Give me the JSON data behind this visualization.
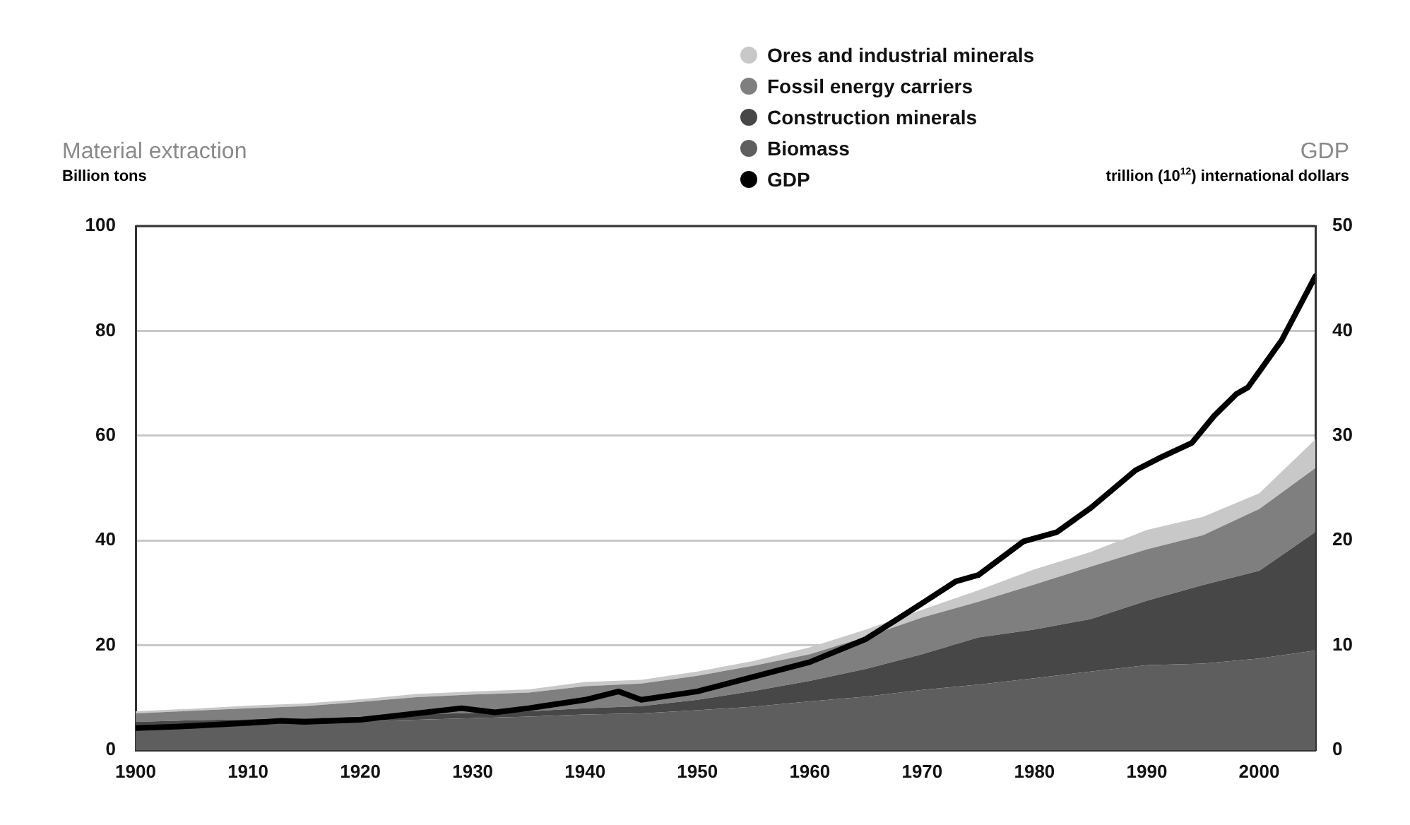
{
  "chart_data": {
    "type": "area",
    "stacked": true,
    "ylabel": "Material extraction",
    "y2label": "GDP",
    "annotations": [
      "Billion tons",
      "trillion (10$^{12}$) international dollars"
    ],
    "x": [
      1900,
      1905,
      1910,
      1915,
      1920,
      1925,
      1930,
      1935,
      1940,
      1945,
      1950,
      1955,
      1960,
      1965,
      1970,
      1975,
      1980,
      1985,
      1990,
      1995,
      2000,
      2005
    ],
    "series": [
      {
        "name": "Biomass",
        "color": "#5e5e5e",
        "values": [
          4.6,
          4.8,
          5.0,
          5.2,
          5.5,
          5.8,
          6.1,
          6.4,
          6.8,
          7.0,
          7.6,
          8.3,
          9.3,
          10.2,
          11.5,
          12.5,
          13.7,
          15.0,
          16.2,
          16.5,
          17.5,
          19.0
        ]
      },
      {
        "name": "Construction minerals",
        "color": "#474747",
        "values": [
          0.8,
          0.9,
          0.9,
          0.9,
          0.9,
          1.0,
          1.0,
          1.0,
          1.2,
          1.4,
          2.0,
          3.0,
          3.9,
          5.3,
          6.8,
          9.0,
          9.3,
          10.0,
          12.3,
          15.0,
          16.7,
          22.6
        ]
      },
      {
        "name": "Fossil energy carriers",
        "color": "#7f7f7f",
        "values": [
          1.6,
          1.8,
          2.1,
          2.3,
          2.8,
          3.3,
          3.5,
          3.6,
          4.2,
          4.3,
          4.6,
          4.8,
          5.1,
          6.1,
          7.0,
          6.8,
          8.6,
          10.0,
          9.8,
          9.5,
          11.8,
          12.2
        ]
      },
      {
        "name": "Ores and industrial minerals",
        "color": "#c8c8c8",
        "values": [
          0.4,
          0.4,
          0.5,
          0.5,
          0.5,
          0.6,
          0.6,
          0.6,
          0.8,
          0.7,
          0.8,
          0.9,
          1.3,
          1.4,
          1.5,
          2.2,
          2.9,
          2.8,
          3.7,
          3.5,
          3.0,
          5.5
        ]
      },
      {
        "name": "GDP",
        "type": "line",
        "axis": "y2",
        "color": "#000000",
        "x": [
          1900,
          1905,
          1910,
          1913,
          1915,
          1920,
          1925,
          1929,
          1932,
          1935,
          1940,
          1943,
          1945,
          1950,
          1955,
          1960,
          1965,
          1970,
          1973,
          1975,
          1979,
          1982,
          1985,
          1989,
          1991,
          1994,
          1996,
          1998,
          1999,
          2001,
          2002,
          2005
        ],
        "values": [
          2.1,
          2.3,
          2.6,
          2.8,
          2.7,
          2.9,
          3.5,
          4.0,
          3.6,
          4.0,
          4.8,
          5.6,
          4.8,
          5.6,
          7.0,
          8.4,
          10.6,
          14.0,
          16.1,
          16.7,
          19.9,
          20.8,
          23.1,
          26.7,
          27.8,
          29.3,
          31.9,
          34.0,
          34.6,
          37.6,
          39.1,
          45.2
        ]
      }
    ],
    "xlim": [
      1900,
      2005
    ],
    "xticks": [
      1900,
      1910,
      1920,
      1930,
      1940,
      1950,
      1960,
      1970,
      1980,
      1990,
      2000
    ],
    "ylim": [
      0,
      100
    ],
    "yticks": [
      0,
      20,
      40,
      60,
      80,
      100
    ],
    "y2lim": [
      0,
      50
    ],
    "y2ticks": [
      0,
      10,
      20,
      30,
      40,
      50
    ],
    "grid": "y",
    "legend": "top"
  }
}
